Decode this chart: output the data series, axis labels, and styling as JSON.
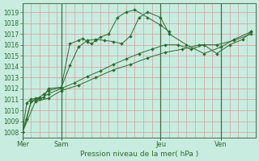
{
  "xlabel": "Pression niveau de la mer( hPa )",
  "ylim": [
    1007.5,
    1019.8
  ],
  "yticks": [
    1008,
    1009,
    1010,
    1011,
    1012,
    1013,
    1014,
    1015,
    1016,
    1017,
    1018,
    1019
  ],
  "bg_color": "#c8ece0",
  "grid_color": "#d4a0a0",
  "line_color": "#2d6b2d",
  "vline_color": "#4a6a4a",
  "xlabel_color": "#2d6b2d",
  "tick_color": "#2d6b2d",
  "spine_color": "#4a6a4a",
  "xlim": [
    0,
    27
  ],
  "xtick_positions": [
    0,
    4.5,
    16.0,
    23.0
  ],
  "xtick_labels": [
    "Mer",
    "Sam",
    "Jeu",
    "Ven"
  ],
  "vline_positions": [
    0,
    4.5,
    16.0,
    23.0
  ],
  "series": [
    {
      "x": [
        0,
        0.5,
        1.0,
        1.5,
        2.0,
        2.5,
        3.0,
        4.5,
        5.5,
        6.5,
        7.0,
        7.5,
        8.0,
        8.5,
        9.0,
        10.0,
        11.0,
        12.0,
        13.0,
        14.5,
        16.0,
        17.0
      ],
      "y": [
        1008.0,
        1009.2,
        1010.8,
        1011.0,
        1011.1,
        1011.2,
        1012.0,
        1012.1,
        1016.1,
        1016.4,
        1016.6,
        1016.3,
        1016.1,
        1016.4,
        1016.7,
        1017.0,
        1018.5,
        1019.0,
        1019.2,
        1018.5,
        1017.8,
        1017.2
      ]
    },
    {
      "x": [
        0,
        0.5,
        1.0,
        1.5,
        2.0,
        2.5,
        3.0,
        4.5,
        5.5,
        6.5,
        7.5,
        8.5,
        9.5,
        10.5,
        11.5,
        12.5,
        13.5,
        14.5,
        16.0,
        17.0,
        19.0,
        21.0,
        23.0,
        24.5,
        26.5
      ],
      "y": [
        1008.0,
        1010.7,
        1011.0,
        1011.1,
        1011.2,
        1011.5,
        1011.8,
        1012.1,
        1014.1,
        1015.8,
        1016.4,
        1016.5,
        1016.4,
        1016.3,
        1016.1,
        1016.8,
        1018.5,
        1019.0,
        1018.5,
        1017.0,
        1016.0,
        1015.2,
        1015.8,
        1016.5,
        1017.2
      ]
    },
    {
      "x": [
        0,
        1.0,
        2.0,
        3.0,
        4.5,
        6.0,
        7.5,
        9.0,
        10.5,
        12.0,
        13.5,
        15.0,
        16.5,
        18.0,
        19.5,
        21.0,
        22.5,
        24.0,
        25.5,
        26.5
      ],
      "y": [
        1008.0,
        1010.8,
        1011.0,
        1011.5,
        1012.0,
        1012.5,
        1013.1,
        1013.6,
        1014.2,
        1014.7,
        1015.2,
        1015.6,
        1016.0,
        1016.0,
        1015.6,
        1016.0,
        1015.2,
        1016.0,
        1016.5,
        1017.2
      ]
    },
    {
      "x": [
        0,
        1.5,
        3.0,
        4.5,
        6.5,
        8.5,
        10.5,
        12.5,
        14.5,
        16.5,
        18.5,
        20.5,
        22.5,
        24.5,
        26.5
      ],
      "y": [
        1008.0,
        1010.8,
        1011.1,
        1011.8,
        1012.3,
        1013.0,
        1013.7,
        1014.2,
        1014.8,
        1015.3,
        1015.6,
        1016.0,
        1016.0,
        1016.4,
        1017.0
      ]
    }
  ]
}
